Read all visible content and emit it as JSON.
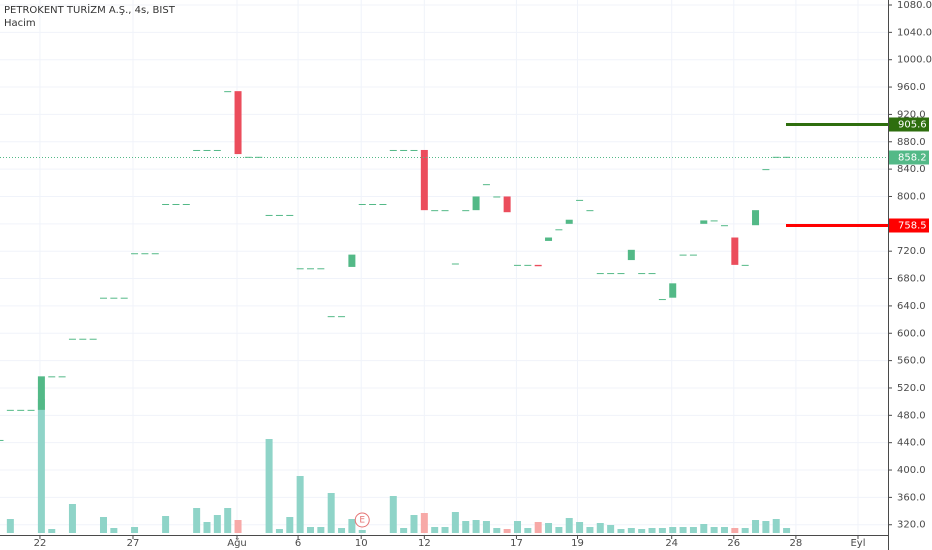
{
  "chart_data": {
    "type": "candlestick",
    "title": "PETROKENT TURİZM A.Ş., 4s, BIST",
    "subtitle": "Hacim",
    "x": [
      0,
      1,
      2,
      3,
      4,
      5,
      6,
      7,
      8,
      9,
      10,
      11,
      12,
      13,
      14,
      15,
      16,
      17,
      18,
      19,
      20,
      21,
      22,
      23,
      24,
      25,
      26,
      27,
      28,
      29,
      30,
      31,
      32,
      33,
      34,
      35,
      36,
      37,
      38,
      39,
      40,
      41,
      42,
      43,
      44,
      45,
      46,
      47,
      48,
      49,
      50,
      51,
      52,
      53,
      54,
      55,
      56,
      57,
      58,
      59,
      60,
      61,
      62,
      63,
      64,
      65,
      66,
      67,
      68,
      69,
      70,
      71,
      72,
      73,
      74,
      75,
      76
    ],
    "open": [
      444,
      488,
      488,
      488,
      488,
      537,
      537,
      592,
      592,
      592,
      652,
      652,
      652,
      717,
      717,
      717,
      789,
      789,
      789,
      868,
      868,
      868,
      954,
      954,
      858,
      858,
      773,
      773,
      773,
      695,
      695,
      695,
      625,
      625,
      697,
      789,
      789,
      789,
      868,
      868,
      868,
      868,
      780,
      780,
      702,
      780,
      780,
      818,
      800,
      800,
      700,
      700,
      700,
      735,
      752,
      760,
      795,
      780,
      688,
      688,
      688,
      707,
      688,
      688,
      650,
      652,
      715,
      715,
      760,
      765,
      758,
      740,
      700,
      758,
      840,
      858,
      858
    ],
    "close": [
      444,
      488,
      488,
      488,
      537,
      537,
      537,
      592,
      592,
      592,
      652,
      652,
      652,
      717,
      717,
      717,
      789,
      789,
      789,
      868,
      868,
      868,
      954,
      862,
      858,
      858,
      773,
      773,
      773,
      695,
      695,
      695,
      625,
      625,
      715,
      789,
      789,
      789,
      868,
      868,
      868,
      780,
      780,
      780,
      702,
      780,
      800,
      818,
      800,
      777,
      700,
      700,
      698,
      740,
      752,
      766,
      795,
      780,
      688,
      688,
      688,
      722,
      688,
      688,
      650,
      673,
      715,
      715,
      765,
      765,
      758,
      700,
      700,
      780,
      840,
      858,
      858
    ],
    "volume": [
      0,
      14,
      0,
      0,
      134,
      4,
      0,
      29,
      0,
      0,
      16,
      5,
      0,
      6,
      0,
      0,
      17,
      0,
      0,
      25,
      11,
      18,
      25,
      13,
      0,
      0,
      94,
      4,
      16,
      57,
      6,
      6,
      40,
      5,
      14,
      3,
      0,
      0,
      37,
      5,
      18,
      20,
      6,
      6,
      21,
      12,
      13,
      12,
      5,
      4,
      12,
      5,
      11,
      10,
      6,
      15,
      11,
      6,
      10,
      8,
      4,
      5,
      4,
      5,
      5,
      6,
      6,
      6,
      9,
      6,
      6,
      5,
      5,
      13,
      12,
      14,
      5
    ],
    "xlim": [
      0,
      85.8
    ],
    "ylim": [
      305,
      1087.3
    ],
    "volume_ylim": [
      0,
      200
    ],
    "yticks": [
      {
        "value": 320,
        "label": "320.0"
      },
      {
        "value": 360,
        "label": "360.0"
      },
      {
        "value": 400,
        "label": "400.0"
      },
      {
        "value": 440,
        "label": "440.0"
      },
      {
        "value": 480,
        "label": "480.0"
      },
      {
        "value": 520,
        "label": "520.0"
      },
      {
        "value": 560,
        "label": "560.0"
      },
      {
        "value": 600,
        "label": "600.0"
      },
      {
        "value": 640,
        "label": "640.0"
      },
      {
        "value": 680,
        "label": "680.0"
      },
      {
        "value": 720,
        "label": "720.0"
      },
      {
        "value": 760,
        "label": "760.0"
      },
      {
        "value": 800,
        "label": "800.0"
      },
      {
        "value": 840,
        "label": "840.0"
      },
      {
        "value": 880,
        "label": "880.0"
      },
      {
        "value": 920,
        "label": "920.0"
      },
      {
        "value": 960,
        "label": "960.0"
      },
      {
        "value": 1000,
        "label": "1000.0"
      },
      {
        "value": 1040,
        "label": "1040.0"
      },
      {
        "value": 1080,
        "label": "1080.0"
      }
    ],
    "xticks": [
      {
        "value": 3.86,
        "label": "22"
      },
      {
        "value": 12.85,
        "label": "27"
      },
      {
        "value": 22.9,
        "label": "Ağu"
      },
      {
        "value": 28.8,
        "label": "6"
      },
      {
        "value": 34.9,
        "label": "10"
      },
      {
        "value": 41,
        "label": "12"
      },
      {
        "value": 49.9,
        "label": "17"
      },
      {
        "value": 55.8,
        "label": "19"
      },
      {
        "value": 64.9,
        "label": "24"
      },
      {
        "value": 70.9,
        "label": "26"
      },
      {
        "value": 76.9,
        "label": "28"
      },
      {
        "value": 82.9,
        "label": "Eyl"
      }
    ],
    "grid": true,
    "up_color": "#53b987",
    "down_color": "#eb4d5c",
    "volume_up_color": "#8fd4c8",
    "volume_down_color": "#f7a9a7",
    "price_lines": [
      {
        "value": 905.6,
        "color": "#2e6e0e",
        "style": "solid"
      },
      {
        "value": 858.2,
        "color": "#53b987",
        "style": "dotted"
      },
      {
        "value": 758.5,
        "color": "#ff0000",
        "style": "solid"
      }
    ],
    "event_marker": {
      "x": 35,
      "label": "E"
    }
  }
}
